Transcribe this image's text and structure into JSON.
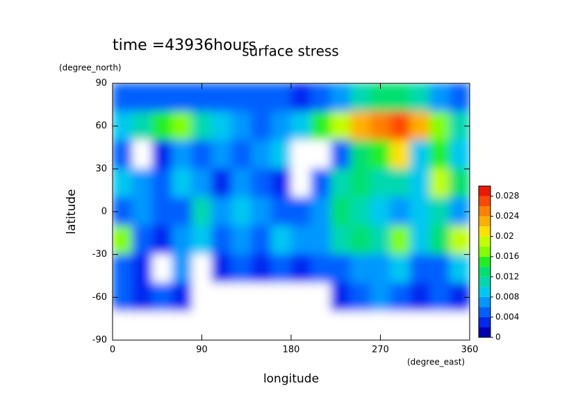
{
  "chart_data": {
    "type": "heatmap",
    "title": "surface stress",
    "annotation": "time =43936hours",
    "xlabel": "longitude",
    "xunit": "(degree_east)",
    "ylabel": "latitude",
    "yunit": "(degree_north)",
    "x": [
      10,
      30,
      50,
      70,
      90,
      110,
      130,
      150,
      170,
      190,
      210,
      230,
      250,
      270,
      290,
      310,
      330,
      350
    ],
    "y": [
      80,
      60,
      40,
      20,
      0,
      -20,
      -40,
      -60,
      -80
    ],
    "z": [
      [
        0.004,
        0.004,
        0.005,
        0.004,
        0.005,
        0.004,
        0.004,
        0.005,
        0.004,
        0.003,
        0.004,
        0.006,
        0.01,
        0.012,
        0.012,
        0.01,
        0.006,
        0.005
      ],
      [
        0.008,
        0.01,
        0.014,
        0.016,
        0.01,
        0.008,
        0.006,
        0.004,
        0.006,
        0.008,
        0.014,
        0.018,
        0.022,
        0.024,
        0.026,
        0.022,
        0.016,
        0.01
      ],
      [
        0.004,
        0,
        0.002,
        0.006,
        0.004,
        0.006,
        0.004,
        0.006,
        0.008,
        0,
        0,
        0.004,
        0.012,
        0.014,
        0.02,
        0.008,
        0.014,
        0.008
      ],
      [
        0.008,
        0.006,
        0.004,
        0.008,
        0.006,
        0.002,
        0.006,
        0.004,
        0.002,
        0,
        0.004,
        0.01,
        0.012,
        0.01,
        0.01,
        0.008,
        0.018,
        0.012
      ],
      [
        0.004,
        0.006,
        0.004,
        0.004,
        0.01,
        0.006,
        0.008,
        0.006,
        0.004,
        0.004,
        0.006,
        0.012,
        0.01,
        0.008,
        0.006,
        0.008,
        0.01,
        0.006
      ],
      [
        0.016,
        0.004,
        0.002,
        0.006,
        0.008,
        0.004,
        0.006,
        0.004,
        0.008,
        0.006,
        0.006,
        0.01,
        0.012,
        0.01,
        0.016,
        0.008,
        0.012,
        0.018
      ],
      [
        0.004,
        0.002,
        0,
        0.006,
        0,
        0.002,
        0.004,
        0.002,
        0.004,
        0.002,
        0.004,
        0.004,
        0.006,
        0.006,
        0.008,
        0.004,
        0.004,
        0.008
      ],
      [
        0.004,
        0.002,
        0.004,
        0.002,
        0,
        0,
        0,
        0,
        0,
        0,
        0,
        0.002,
        0.004,
        0.006,
        0.004,
        0.002,
        0.004,
        0.002
      ],
      [
        0,
        0,
        0,
        0,
        0,
        0,
        0,
        0,
        0,
        0,
        0,
        0,
        0,
        0,
        0,
        0,
        0,
        0
      ]
    ],
    "xlim": [
      0,
      360
    ],
    "xticks": [
      0,
      90,
      180,
      270,
      360
    ],
    "ylim": [
      -90,
      90
    ],
    "yticks": [
      -90,
      -60,
      -30,
      0,
      30,
      60,
      90
    ],
    "levels": [
      0,
      0.002,
      0.004,
      0.006,
      0.008,
      0.01,
      0.012,
      0.014,
      0.016,
      0.018,
      0.02,
      0.022,
      0.024,
      0.026,
      0.028,
      0.03
    ],
    "colors": [
      "#0000b4",
      "#0028f0",
      "#0060ff",
      "#0098ff",
      "#00c8f0",
      "#00d8b0",
      "#00e070",
      "#20f020",
      "#80ff00",
      "#c0ff00",
      "#ffe000",
      "#ffb000",
      "#ff8000",
      "#ff4800",
      "#f01800"
    ],
    "under_color": "#ffffff",
    "colorbar_ticks": [
      0,
      0.004,
      0.008,
      0.012,
      0.016,
      0.02,
      0.024,
      0.028
    ],
    "colorbar_lim": [
      0,
      0.03
    ]
  }
}
